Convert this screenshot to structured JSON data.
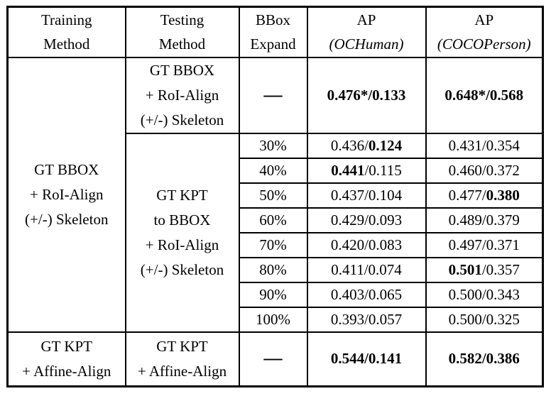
{
  "table": {
    "header": {
      "training": [
        "Training",
        "Method"
      ],
      "testing": [
        "Testing",
        "Method"
      ],
      "bbox_expand": [
        "BBox",
        "Expand"
      ],
      "ap_ochuman": {
        "line1": "AP",
        "line2": "(OCHuman)"
      },
      "ap_cocoperson": {
        "line1": "AP",
        "line2": "(COCOPerson)"
      }
    },
    "group1": {
      "training_lines": [
        "GT BBOX",
        "+ RoI-Align",
        "(+/-) Skeleton"
      ],
      "row_gt_bbox": {
        "testing_lines": [
          "GT BBOX",
          "+ RoI-Align",
          "(+/-) Skeleton"
        ],
        "bbox_expand": "—",
        "ap_ochuman": [
          {
            "t": "0.476*/0.133",
            "b": true
          }
        ],
        "ap_cocoperson": [
          {
            "t": "0.648*/0.568",
            "b": true
          }
        ]
      },
      "gt_kpt_to_bbox": {
        "testing_lines": [
          "GT KPT",
          "to BBOX",
          "+ RoI-Align",
          "(+/-) Skeleton"
        ],
        "rows": [
          {
            "expand": "30%",
            "och": [
              {
                "t": "0.436/",
                "b": false
              },
              {
                "t": "0.124",
                "b": true
              }
            ],
            "coco": [
              {
                "t": "0.431/0.354",
                "b": false
              }
            ]
          },
          {
            "expand": "40%",
            "och": [
              {
                "t": "0.441",
                "b": true
              },
              {
                "t": "/0.115",
                "b": false
              }
            ],
            "coco": [
              {
                "t": "0.460/0.372",
                "b": false
              }
            ]
          },
          {
            "expand": "50%",
            "och": [
              {
                "t": "0.437/0.104",
                "b": false
              }
            ],
            "coco": [
              {
                "t": "0.477/",
                "b": false
              },
              {
                "t": "0.380",
                "b": true
              }
            ]
          },
          {
            "expand": "60%",
            "och": [
              {
                "t": "0.429/0.093",
                "b": false
              }
            ],
            "coco": [
              {
                "t": "0.489/0.379",
                "b": false
              }
            ]
          },
          {
            "expand": "70%",
            "och": [
              {
                "t": "0.420/0.083",
                "b": false
              }
            ],
            "coco": [
              {
                "t": "0.497/0.371",
                "b": false
              }
            ]
          },
          {
            "expand": "80%",
            "och": [
              {
                "t": "0.411/0.074",
                "b": false
              }
            ],
            "coco": [
              {
                "t": "0.501",
                "b": true
              },
              {
                "t": "/0.357",
                "b": false
              }
            ]
          },
          {
            "expand": "90%",
            "och": [
              {
                "t": "0.403/0.065",
                "b": false
              }
            ],
            "coco": [
              {
                "t": "0.500/0.343",
                "b": false
              }
            ]
          },
          {
            "expand": "100%",
            "och": [
              {
                "t": "0.393/0.057",
                "b": false
              }
            ],
            "coco": [
              {
                "t": "0.500/0.325",
                "b": false
              }
            ]
          }
        ]
      }
    },
    "group2": {
      "training_lines": [
        "GT KPT",
        "+ Affine-Align"
      ],
      "testing_lines": [
        "GT KPT",
        "+ Affine-Align"
      ],
      "bbox_expand": "—",
      "ap_ochuman": [
        {
          "t": "0.544/0.141",
          "b": true
        }
      ],
      "ap_cocoperson": [
        {
          "t": "0.582/0.386",
          "b": true
        }
      ]
    }
  },
  "chart_data": {
    "type": "table",
    "columns": [
      "Training Method",
      "Testing Method",
      "BBox Expand",
      "AP (OCHuman)",
      "AP (COCOPerson)"
    ],
    "rows": [
      [
        "GT BBOX + RoI-Align (+/-) Skeleton",
        "GT BBOX + RoI-Align (+/-) Skeleton",
        "—",
        "0.476*/0.133",
        "0.648*/0.568"
      ],
      [
        "GT BBOX + RoI-Align (+/-) Skeleton",
        "GT KPT to BBOX + RoI-Align (+/-) Skeleton",
        "30%",
        "0.436/0.124",
        "0.431/0.354"
      ],
      [
        "GT BBOX + RoI-Align (+/-) Skeleton",
        "GT KPT to BBOX + RoI-Align (+/-) Skeleton",
        "40%",
        "0.441/0.115",
        "0.460/0.372"
      ],
      [
        "GT BBOX + RoI-Align (+/-) Skeleton",
        "GT KPT to BBOX + RoI-Align (+/-) Skeleton",
        "50%",
        "0.437/0.104",
        "0.477/0.380"
      ],
      [
        "GT BBOX + RoI-Align (+/-) Skeleton",
        "GT KPT to BBOX + RoI-Align (+/-) Skeleton",
        "60%",
        "0.429/0.093",
        "0.489/0.379"
      ],
      [
        "GT BBOX + RoI-Align (+/-) Skeleton",
        "GT KPT to BBOX + RoI-Align (+/-) Skeleton",
        "70%",
        "0.420/0.083",
        "0.497/0.371"
      ],
      [
        "GT BBOX + RoI-Align (+/-) Skeleton",
        "GT KPT to BBOX + RoI-Align (+/-) Skeleton",
        "80%",
        "0.411/0.074",
        "0.501/0.357"
      ],
      [
        "GT BBOX + RoI-Align (+/-) Skeleton",
        "GT KPT to BBOX + RoI-Align (+/-) Skeleton",
        "90%",
        "0.403/0.065",
        "0.500/0.343"
      ],
      [
        "GT BBOX + RoI-Align (+/-) Skeleton",
        "GT KPT to BBOX + RoI-Align (+/-) Skeleton",
        "100%",
        "0.393/0.057",
        "0.500/0.325"
      ],
      [
        "GT KPT + Affine-Align",
        "GT KPT + Affine-Align",
        "—",
        "0.544/0.141",
        "0.582/0.386"
      ]
    ],
    "colors": {
      "text": "#000000",
      "border": "#000000",
      "background": "#ffffff"
    }
  }
}
